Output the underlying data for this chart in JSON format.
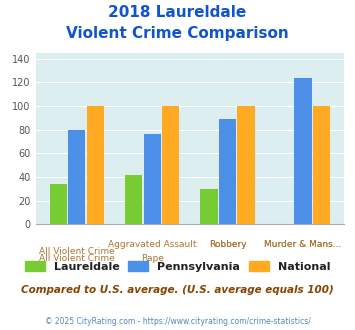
{
  "title_line1": "2018 Laureldale",
  "title_line2": "Violent Crime Comparison",
  "groups": 4,
  "top_labels": [
    "",
    "Aggravated Assault",
    "Robbery",
    "Murder & Mans..."
  ],
  "bottom_labels": [
    "All Violent Crime",
    "Rape",
    "",
    ""
  ],
  "laureldale": [
    34,
    42,
    30,
    0
  ],
  "pennsylvania": [
    80,
    76,
    89,
    124
  ],
  "national": [
    100,
    100,
    100,
    100
  ],
  "colors": {
    "laureldale": "#77cc33",
    "pennsylvania": "#4d90e8",
    "national": "#ffaa22"
  },
  "ylim": [
    0,
    145
  ],
  "yticks": [
    0,
    20,
    40,
    60,
    80,
    100,
    120,
    140
  ],
  "background_color": "#ddeef0",
  "title_color": "#1155cc",
  "label_color_top": "#aa7733",
  "label_color_bot": "#aa7733",
  "subtitle_note": "Compared to U.S. average. (U.S. average equals 100)",
  "footer": "© 2025 CityRating.com - https://www.cityrating.com/crime-statistics/",
  "legend_labels": [
    "Laureldale",
    "Pennsylvania",
    "National"
  ]
}
